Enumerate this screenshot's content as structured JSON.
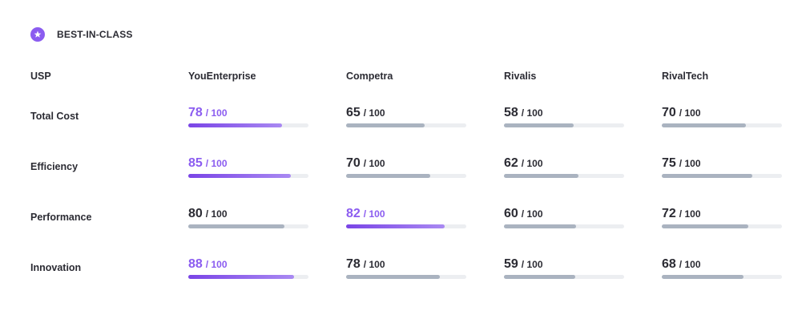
{
  "header": {
    "badge": "BEST-IN-CLASS"
  },
  "table": {
    "columns": [
      "USP",
      "YouEnterprise",
      "Competra",
      "Rivalis",
      "RivalTech"
    ],
    "max": {
      "value": 100,
      "label": "/ 100"
    },
    "rows": [
      {
        "label": "Total Cost",
        "scores": [
          78,
          65,
          58,
          70
        ]
      },
      {
        "label": "Efficiency",
        "scores": [
          85,
          70,
          62,
          75
        ]
      },
      {
        "label": "Performance",
        "scores": [
          80,
          82,
          60,
          72
        ]
      },
      {
        "label": "Innovation",
        "scores": [
          88,
          78,
          59,
          68
        ]
      }
    ]
  }
}
